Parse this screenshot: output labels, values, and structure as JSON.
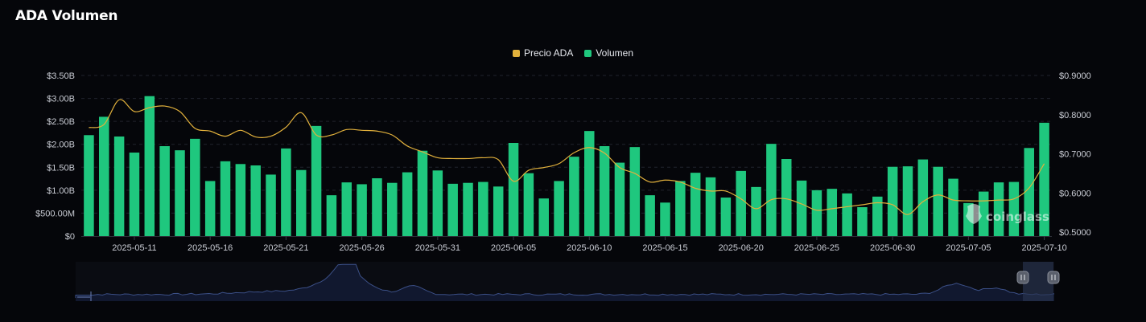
{
  "title": "ADA Volumen",
  "watermark": "coinglass",
  "colors": {
    "price": "#e2b13c",
    "volume": "#1fc77e",
    "grid": "#20232c",
    "navigator_line": "#3b4f86"
  },
  "chart_data": {
    "type": "bar",
    "legend": [
      {
        "label": "Precio ADA",
        "color": "#e2b13c"
      },
      {
        "label": "Volumen",
        "color": "#1fc77e"
      }
    ],
    "legend_position": "top-center",
    "grid": true,
    "x_tick_labels": [
      "2025-05-11",
      "2025-05-16",
      "2025-05-21",
      "2025-05-26",
      "2025-05-31",
      "2025-06-05",
      "2025-06-10",
      "2025-06-15",
      "2025-06-20",
      "2025-06-25",
      "2025-06-30",
      "2025-07-05",
      "2025-07-10"
    ],
    "y_left_tick_labels": [
      "$0",
      "$500.00M",
      "$1.00B",
      "$1.50B",
      "$2.00B",
      "$2.50B",
      "$3.00B",
      "$3.50B"
    ],
    "y_left_ticks": [
      0,
      0.5,
      1.0,
      1.5,
      2.0,
      2.5,
      3.0,
      3.5
    ],
    "y_left_range": [
      0,
      3.5
    ],
    "y_right_tick_labels": [
      "$0.5000",
      "$0.6000",
      "$0.7000",
      "$0.8000",
      "$0.9000"
    ],
    "y_right_ticks": [
      0.5,
      0.6,
      0.7,
      0.8,
      0.9
    ],
    "y_right_range": [
      0.49,
      0.9
    ],
    "dates": [
      "2025-05-08",
      "2025-05-09",
      "2025-05-10",
      "2025-05-11",
      "2025-05-12",
      "2025-05-13",
      "2025-05-14",
      "2025-05-15",
      "2025-05-16",
      "2025-05-17",
      "2025-05-18",
      "2025-05-19",
      "2025-05-20",
      "2025-05-21",
      "2025-05-22",
      "2025-05-23",
      "2025-05-24",
      "2025-05-25",
      "2025-05-26",
      "2025-05-27",
      "2025-05-28",
      "2025-05-29",
      "2025-05-30",
      "2025-05-31",
      "2025-06-01",
      "2025-06-02",
      "2025-06-03",
      "2025-06-04",
      "2025-06-05",
      "2025-06-06",
      "2025-06-07",
      "2025-06-08",
      "2025-06-09",
      "2025-06-10",
      "2025-06-11",
      "2025-06-12",
      "2025-06-13",
      "2025-06-14",
      "2025-06-15",
      "2025-06-16",
      "2025-06-17",
      "2025-06-18",
      "2025-06-19",
      "2025-06-20",
      "2025-06-21",
      "2025-06-22",
      "2025-06-23",
      "2025-06-24",
      "2025-06-25",
      "2025-06-26",
      "2025-06-27",
      "2025-06-28",
      "2025-06-29",
      "2025-06-30",
      "2025-07-01",
      "2025-07-02",
      "2025-07-03",
      "2025-07-04",
      "2025-07-05",
      "2025-07-06",
      "2025-07-07",
      "2025-07-08",
      "2025-07-09",
      "2025-07-10"
    ],
    "series": [
      {
        "name": "Volumen",
        "type": "bar",
        "axis": "left",
        "unit": "billion USD",
        "values": [
          2.2,
          2.6,
          2.17,
          1.82,
          3.05,
          1.96,
          1.87,
          2.12,
          1.2,
          1.63,
          1.57,
          1.54,
          1.34,
          1.91,
          1.44,
          2.4,
          0.89,
          1.17,
          1.13,
          1.26,
          1.16,
          1.39,
          1.86,
          1.43,
          1.14,
          1.16,
          1.18,
          1.08,
          2.03,
          1.37,
          0.82,
          1.2,
          1.73,
          2.29,
          1.96,
          1.6,
          1.94,
          0.89,
          0.73,
          1.2,
          1.38,
          1.28,
          0.84,
          1.42,
          1.07,
          2.01,
          1.68,
          1.21,
          1.0,
          1.03,
          0.93,
          0.63,
          0.86,
          1.51,
          1.52,
          1.67,
          1.51,
          1.25,
          0.72,
          0.97,
          1.17,
          1.18,
          1.92,
          2.47
        ]
      },
      {
        "name": "Precio ADA",
        "type": "line",
        "axis": "right",
        "unit": "USD",
        "values": [
          0.767,
          0.775,
          0.838,
          0.808,
          0.818,
          0.822,
          0.808,
          0.765,
          0.758,
          0.745,
          0.76,
          0.743,
          0.745,
          0.768,
          0.805,
          0.748,
          0.748,
          0.762,
          0.76,
          0.758,
          0.748,
          0.72,
          0.705,
          0.69,
          0.688,
          0.688,
          0.69,
          0.685,
          0.63,
          0.658,
          0.665,
          0.675,
          0.703,
          0.716,
          0.702,
          0.665,
          0.65,
          0.628,
          0.633,
          0.628,
          0.612,
          0.605,
          0.605,
          0.585,
          0.56,
          0.583,
          0.585,
          0.572,
          0.556,
          0.56,
          0.565,
          0.57,
          0.575,
          0.57,
          0.545,
          0.578,
          0.595,
          0.582,
          0.58,
          0.58,
          0.582,
          0.585,
          0.613,
          0.675
        ]
      }
    ]
  }
}
